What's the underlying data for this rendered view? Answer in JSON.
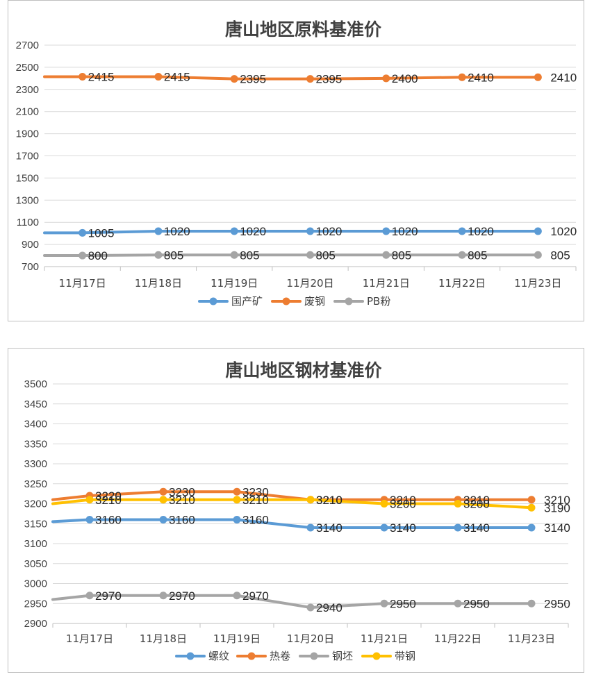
{
  "chart_data": [
    {
      "type": "line",
      "title": "唐山地区原料基准价",
      "categories": [
        "11月17日",
        "11月18日",
        "11月19日",
        "11月20日",
        "11月21日",
        "11月22日",
        "11月23日"
      ],
      "ylim": [
        700,
        2700
      ],
      "yticks": [
        700,
        900,
        1100,
        1300,
        1500,
        1700,
        1900,
        2100,
        2300,
        2500,
        2700
      ],
      "grid": true,
      "legend_position": "bottom",
      "series": [
        {
          "name": "国产矿",
          "color": "#5b9bd5",
          "start": 1005,
          "values": [
            1005,
            1020,
            1020,
            1020,
            1020,
            1020,
            1020
          ]
        },
        {
          "name": "废钢",
          "color": "#ed7d31",
          "start": 2415,
          "values": [
            2415,
            2415,
            2395,
            2395,
            2400,
            2410,
            2410
          ]
        },
        {
          "name": "PB粉",
          "color": "#a5a5a5",
          "start": 800,
          "values": [
            800,
            805,
            805,
            805,
            805,
            805,
            805
          ]
        }
      ]
    },
    {
      "type": "line",
      "title": "唐山地区钢材基准价",
      "categories": [
        "11月17日",
        "11月18日",
        "11月19日",
        "11月20日",
        "11月21日",
        "11月22日",
        "11月23日"
      ],
      "ylim": [
        2900,
        3500
      ],
      "yticks": [
        2900,
        2950,
        3000,
        3050,
        3100,
        3150,
        3200,
        3250,
        3300,
        3350,
        3400,
        3450,
        3500
      ],
      "grid": true,
      "legend_position": "bottom",
      "series": [
        {
          "name": "螺纹",
          "color": "#5b9bd5",
          "start": 3155,
          "values": [
            3160,
            3160,
            3160,
            3140,
            3140,
            3140,
            3140
          ]
        },
        {
          "name": "热卷",
          "color": "#ed7d31",
          "start": 3210,
          "values": [
            3220,
            3230,
            3230,
            3210,
            3210,
            3210,
            3210
          ]
        },
        {
          "name": "钢坯",
          "color": "#a5a5a5",
          "start": 2960,
          "values": [
            2970,
            2970,
            2970,
            2940,
            2950,
            2950,
            2950
          ]
        },
        {
          "name": "带钢",
          "color": "#ffc000",
          "start": 3200,
          "values": [
            3210,
            3210,
            3210,
            3210,
            3200,
            3200,
            3190
          ]
        }
      ]
    }
  ]
}
